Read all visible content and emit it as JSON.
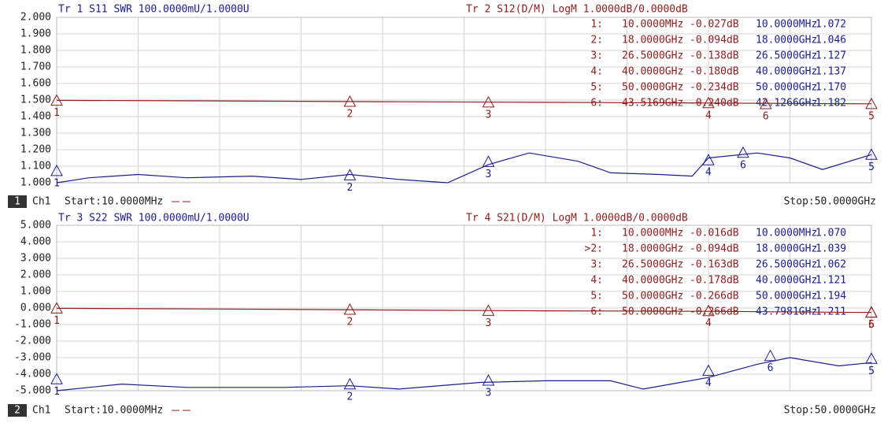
{
  "chart_data": [
    {
      "type": "line",
      "channel": "1",
      "channel_label": "Ch1",
      "start": "Start:10.0000MHz",
      "stop": "Stop:50.0000GHz",
      "xlim": [
        0.01,
        50
      ],
      "ylim": [
        1,
        2
      ],
      "y2lim": [
        -5,
        5
      ],
      "grid": true,
      "yticks": [
        {
          "value": 1,
          "label": "1.000"
        },
        {
          "value": 1.1,
          "label": "1.100"
        },
        {
          "value": 1.2,
          "label": "1.200"
        },
        {
          "value": 1.3,
          "label": "1.300"
        },
        {
          "value": 1.4,
          "label": "1.400"
        },
        {
          "value": 1.5,
          "label": "1.500"
        },
        {
          "value": 1.6,
          "label": "1.600"
        },
        {
          "value": 1.7,
          "label": "1.700"
        },
        {
          "value": 1.8,
          "label": "1.800"
        },
        {
          "value": 1.9,
          "label": "1.900"
        },
        {
          "value": 2,
          "label": "2.000"
        }
      ],
      "marker_rows": [
        "1:",
        "2:",
        "3:",
        "4:",
        "5:",
        "6:"
      ],
      "series": [
        {
          "name": "Tr 1  S11 SWR 100.0000mU/1.0000U",
          "color": "#1c1c8e",
          "x": [
            0.01,
            2,
            5,
            8,
            12,
            15,
            18,
            21,
            24,
            26.5,
            29,
            32,
            34,
            37,
            39,
            40,
            43,
            45,
            47,
            50
          ],
          "values": [
            1.0,
            1.03,
            1.05,
            1.03,
            1.04,
            1.02,
            1.05,
            1.02,
            1.0,
            1.11,
            1.18,
            1.13,
            1.06,
            1.05,
            1.04,
            1.15,
            1.18,
            1.15,
            1.08,
            1.17
          ],
          "markers": {
            "names": [
              "1",
              "2",
              "3",
              "4",
              "5",
              "6"
            ],
            "x": [
              0.01,
              18,
              26.5,
              40,
              50,
              42.1266
            ],
            "x_labels": [
              "10.0000MHz",
              "18.0000GHz",
              "26.5000GHz",
              "40.0000GHz",
              "50.0000GHz",
              "42.1266GHz"
            ],
            "values": [
              1.072,
              1.046,
              1.127,
              1.137,
              1.17,
              1.182
            ],
            "value_labels": [
              "1.072",
              "1.046",
              "1.127",
              "1.137",
              "1.170",
              "1.182"
            ]
          }
        },
        {
          "name": "Tr 2  S12(D/M) LogM 1.0000dB/0.0000dB",
          "color": "#8e1c1c",
          "axis": "y2",
          "x": [
            0.01,
            10,
            20,
            30,
            40,
            50
          ],
          "values": [
            -0.02,
            -0.05,
            -0.1,
            -0.14,
            -0.18,
            -0.23
          ],
          "markers": {
            "names": [
              "1",
              "2",
              "3",
              "4",
              "5",
              "6"
            ],
            "x": [
              0.01,
              18,
              26.5,
              40,
              50,
              43.5169
            ],
            "x_labels": [
              "10.0000MHz",
              "18.0000GHz",
              "26.5000GHz",
              "40.0000GHz",
              "50.0000GHz",
              "43.5169GHz"
            ],
            "values": [
              -0.027,
              -0.094,
              -0.138,
              -0.18,
              -0.234,
              -0.24
            ],
            "value_labels": [
              "-0.027dB",
              "-0.094dB",
              "-0.138dB",
              "-0.180dB",
              "-0.234dB",
              "-0.240dB"
            ]
          }
        }
      ]
    },
    {
      "type": "line",
      "channel": "2",
      "channel_label": "Ch1",
      "start": "Start:10.0000MHz",
      "stop": "Stop:50.0000GHz",
      "xlim": [
        0.01,
        50
      ],
      "ylim": [
        -5,
        5
      ],
      "y2lim": [
        1,
        2
      ],
      "grid": true,
      "yticks": [
        {
          "value": -5,
          "label": "-5.000"
        },
        {
          "value": -4,
          "label": "-4.000"
        },
        {
          "value": -3,
          "label": "-3.000"
        },
        {
          "value": -2,
          "label": "-2.000"
        },
        {
          "value": -1,
          "label": "-1.000"
        },
        {
          "value": 0,
          "label": "0.000"
        },
        {
          "value": 1,
          "label": "1.000"
        },
        {
          "value": 2,
          "label": "2.000"
        },
        {
          "value": 3,
          "label": "3.000"
        },
        {
          "value": 4,
          "label": "4.000"
        },
        {
          "value": 5,
          "label": "5.000"
        }
      ],
      "marker_rows": [
        "1:",
        ">2:",
        "3:",
        "4:",
        "5:",
        "6:"
      ],
      "series": [
        {
          "name": "Tr 3  S22 SWR 100.0000mU/1.0000U",
          "color": "#1c1c8e",
          "axis": "y2",
          "x": [
            0.01,
            4,
            8,
            14,
            18,
            21,
            26,
            30,
            34,
            36,
            40,
            43,
            45,
            48,
            50
          ],
          "values": [
            1.0,
            1.04,
            1.02,
            1.02,
            1.03,
            1.01,
            1.05,
            1.06,
            1.06,
            1.01,
            1.08,
            1.16,
            1.2,
            1.15,
            1.17
          ],
          "markers": {
            "names": [
              "1",
              "2",
              "3",
              "4",
              "5",
              "6"
            ],
            "x": [
              0.01,
              18,
              26.5,
              40,
              50,
              43.7981
            ],
            "x_labels": [
              "10.0000MHz",
              "18.0000GHz",
              "26.5000GHz",
              "40.0000GHz",
              "50.0000GHz",
              "43.7981GHz"
            ],
            "values": [
              1.07,
              1.039,
              1.062,
              1.121,
              1.194,
              1.211
            ],
            "value_labels": [
              "1.070",
              "1.039",
              "1.062",
              "1.121",
              "1.194",
              "1.211"
            ]
          }
        },
        {
          "name": "Tr 4  S21(D/M) LogM 1.0000dB/0.0000dB",
          "color": "#8e1c1c",
          "x": [
            0.01,
            10,
            20,
            30,
            40,
            50
          ],
          "values": [
            -0.02,
            -0.06,
            -0.12,
            -0.17,
            -0.2,
            -0.27
          ],
          "markers": {
            "names": [
              "1",
              "2",
              "3",
              "4",
              "5",
              "6"
            ],
            "x": [
              0.01,
              18,
              26.5,
              40,
              50,
              50
            ],
            "x_labels": [
              "10.0000MHz",
              "18.0000GHz",
              "26.5000GHz",
              "40.0000GHz",
              "50.0000GHz",
              "50.0000GHz"
            ],
            "values": [
              -0.016,
              -0.094,
              -0.163,
              -0.178,
              -0.266,
              -0.266
            ],
            "value_labels": [
              "-0.016dB",
              "-0.094dB",
              "-0.163dB",
              "-0.178dB",
              "-0.266dB",
              "-0.266dB"
            ]
          }
        }
      ]
    }
  ]
}
